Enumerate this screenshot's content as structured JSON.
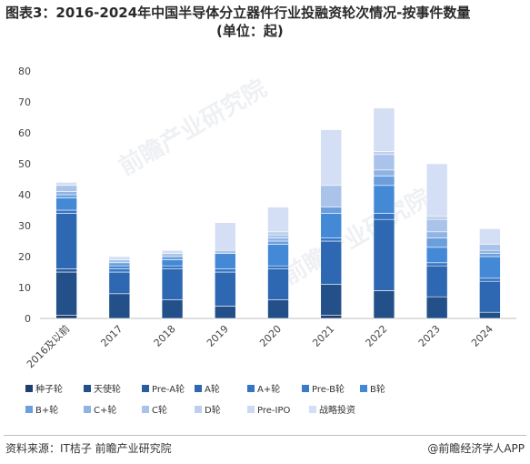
{
  "title_line1": "图表3：2016-2024年中国半导体分立器件行业投融资轮次情况-按事件数量",
  "title_line2": "(单位：起)",
  "source": "资料来源：IT桔子 前瞻产业研究院",
  "brand": "@前瞻经济学人APP",
  "watermark": "前瞻产业研究院",
  "chart_data": {
    "type": "bar",
    "stacked": true,
    "categories": [
      "2016及以前",
      "2017",
      "2018",
      "2019",
      "2020",
      "2021",
      "2022",
      "2023",
      "2024"
    ],
    "ylim": [
      0,
      80
    ],
    "yticks": [
      0,
      10,
      20,
      30,
      40,
      50,
      60,
      70,
      80
    ],
    "grid": false,
    "legend_position": "bottom",
    "series": [
      {
        "name": "种子轮",
        "color": "#1f3f6e",
        "values": [
          1,
          0,
          0,
          0,
          0,
          1,
          0,
          0,
          0
        ]
      },
      {
        "name": "天使轮",
        "color": "#24508a",
        "values": [
          14,
          8,
          6,
          4,
          6,
          10,
          9,
          7,
          2
        ]
      },
      {
        "name": "Pre-A轮",
        "color": "#2a5d9f",
        "values": [
          1,
          0,
          0,
          0,
          0,
          0,
          0,
          0,
          0
        ]
      },
      {
        "name": "A轮",
        "color": "#2e68b2",
        "values": [
          18,
          7,
          10,
          11,
          10,
          14,
          23,
          10,
          10
        ]
      },
      {
        "name": "A+轮",
        "color": "#3674c4",
        "values": [
          1,
          1,
          1,
          1,
          1,
          1,
          2,
          1,
          1
        ]
      },
      {
        "name": "Pre-B轮",
        "color": "#3a7bcc",
        "values": [
          0,
          0,
          0,
          0,
          0,
          0,
          0,
          0,
          0
        ]
      },
      {
        "name": "B轮",
        "color": "#4489d6",
        "values": [
          4,
          1,
          2,
          5,
          7,
          8,
          9,
          5,
          7
        ]
      },
      {
        "name": "B+轮",
        "color": "#6a9fdc",
        "values": [
          1,
          1,
          1,
          0,
          1,
          2,
          3,
          3,
          1
        ]
      },
      {
        "name": "C+轮",
        "color": "#8fb3e3",
        "values": [
          1,
          0,
          0,
          0,
          1,
          0,
          2,
          2,
          1
        ]
      },
      {
        "name": "C轮",
        "color": "#a9c3ea",
        "values": [
          2,
          1,
          1,
          1,
          1,
          7,
          5,
          4,
          2
        ]
      },
      {
        "name": "D轮",
        "color": "#bccfee",
        "values": [
          0,
          0,
          0,
          0,
          1,
          0,
          1,
          1,
          0
        ]
      },
      {
        "name": "Pre-IPO",
        "color": "#ccd9f2",
        "values": [
          0,
          0,
          0,
          0,
          0,
          0,
          0,
          0,
          0
        ]
      },
      {
        "name": "战略投资",
        "color": "#d4def4",
        "values": [
          1,
          1,
          1,
          9,
          8,
          18,
          14,
          17,
          5
        ]
      }
    ]
  }
}
